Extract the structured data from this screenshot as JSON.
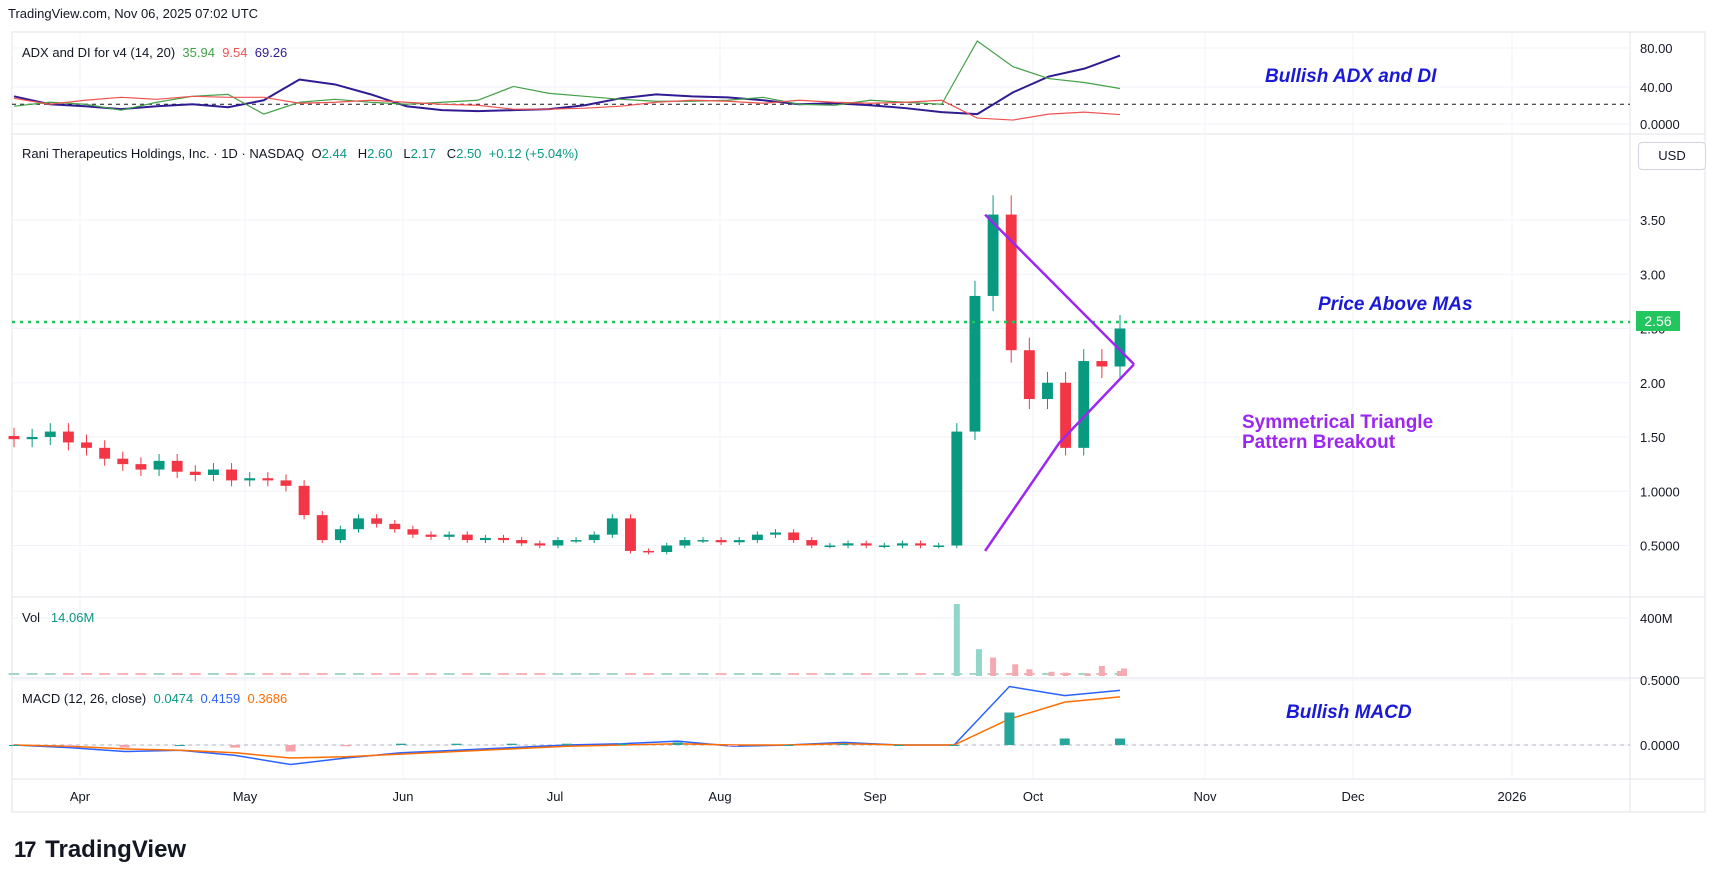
{
  "header": {
    "source_line": "TradingView.com, Nov 06, 2025 07:02 UTC"
  },
  "brand": {
    "logo_text": "TradingView",
    "logo_mark": "17"
  },
  "colors": {
    "up": "#089981",
    "down": "#f23645",
    "adx": "#311b92",
    "di_plus": "#43a047",
    "di_minus": "#ef5350",
    "macd": "#2962ff",
    "signal": "#ff6d00",
    "price_line": "#22c55e",
    "triangle": "#9c27f0",
    "annotation": "#1a1ad6"
  },
  "chart_data": [
    {
      "type": "line",
      "title": "ADX and DI for v4 (14, 20)",
      "values_text": {
        "di_plus": "35.94",
        "di_minus": "9.54",
        "adx": "69.26"
      },
      "yticks": [
        "80.00",
        "40.00",
        "0.0000"
      ],
      "ylim": [
        0,
        85
      ],
      "threshold": 20,
      "series": [
        {
          "name": "ADX",
          "values": [
            28,
            20,
            18,
            15,
            18,
            20,
            17,
            24,
            45,
            40,
            30,
            18,
            14,
            13,
            14,
            15,
            19,
            26,
            30,
            28,
            27,
            24,
            20,
            21,
            19,
            16,
            12,
            10,
            32,
            48,
            56,
            69.26
          ]
        },
        {
          "name": "+DI",
          "values": [
            18,
            22,
            20,
            14,
            22,
            28,
            30,
            10,
            22,
            25,
            22,
            20,
            22,
            24,
            38,
            31,
            28,
            25,
            23,
            23,
            24,
            27,
            20,
            19,
            24,
            22,
            20,
            84,
            58,
            46,
            42,
            35.94
          ]
        },
        {
          "name": "-DI",
          "values": [
            26,
            20,
            24,
            27,
            25,
            28,
            27,
            27,
            21,
            22,
            24,
            22,
            20,
            19,
            15,
            15,
            16,
            18,
            22,
            24,
            23,
            21,
            24,
            22,
            21,
            22,
            24,
            6,
            4,
            10,
            12,
            9.54
          ]
        }
      ],
      "annotation": "Bullish ADX and DI"
    },
    {
      "type": "candlestick",
      "title": "Rani Therapeutics Holdings, Inc. · 1D · NASDAQ",
      "ohlc_text": {
        "o_label": "O",
        "o": "2.44",
        "h_label": "H",
        "h": "2.60",
        "l_label": "L",
        "l": "2.17",
        "c_label": "C",
        "c": "2.50",
        "change": "+0.12 (+5.04%)"
      },
      "currency": "USD",
      "last_price": "2.56",
      "ylim": [
        0.1,
        4.0
      ],
      "yticks": [
        "3.50",
        "3.00",
        "2.50",
        "2.00",
        "1.50",
        "1.0000",
        "0.5000"
      ],
      "xlabels": [
        "Apr",
        "May",
        "Jun",
        "Jul",
        "Aug",
        "Sep",
        "Oct",
        "Nov",
        "Dec",
        "2026"
      ],
      "series": [
        {
          "name": "price",
          "close": [
            1.48,
            1.5,
            1.55,
            1.45,
            1.4,
            1.3,
            1.25,
            1.2,
            1.28,
            1.18,
            1.15,
            1.2,
            1.1,
            1.12,
            1.1,
            1.05,
            0.78,
            0.55,
            0.65,
            0.75,
            0.7,
            0.65,
            0.6,
            0.58,
            0.6,
            0.55,
            0.57,
            0.55,
            0.52,
            0.5,
            0.55,
            0.55,
            0.6,
            0.75,
            0.45,
            0.44,
            0.5,
            0.55,
            0.55,
            0.53,
            0.55,
            0.6,
            0.62,
            0.55,
            0.5,
            0.5,
            0.52,
            0.5,
            0.5,
            0.52,
            0.5,
            0.5,
            1.55,
            2.8,
            3.55,
            2.3,
            1.85,
            2.0,
            1.4,
            2.2,
            2.15,
            2.5
          ]
        }
      ],
      "annotations": [
        "Price Above MAs",
        "Symmetrical Triangle",
        "Pattern Breakout"
      ]
    },
    {
      "type": "bar",
      "title": "Vol",
      "value_text": "14.06M",
      "yticks": [
        "400M"
      ],
      "series": [
        {
          "name": "volume_spike_days",
          "values": [
            430,
            160,
            110,
            70,
            40,
            25,
            20,
            15,
            60,
            45,
            30
          ]
        }
      ]
    },
    {
      "type": "line",
      "title": "MACD (12, 26, close)",
      "values_text": {
        "hist": "0.0474",
        "macd": "0.4159",
        "signal": "0.3686"
      },
      "yticks": [
        "0.5000",
        "0.0000"
      ],
      "series": [
        {
          "name": "MACD",
          "values": [
            0,
            -0.02,
            -0.05,
            -0.04,
            -0.08,
            -0.15,
            -0.1,
            -0.06,
            -0.04,
            -0.02,
            0,
            0.01,
            0.03,
            -0.01,
            0.0,
            0.02,
            0.0,
            0.0,
            0.45,
            0.38,
            0.42
          ]
        },
        {
          "name": "Signal",
          "values": [
            0,
            -0.01,
            -0.03,
            -0.04,
            -0.06,
            -0.1,
            -0.09,
            -0.07,
            -0.05,
            -0.03,
            -0.01,
            0,
            0.01,
            0.0,
            0.0,
            0.01,
            0.0,
            0.0,
            0.2,
            0.33,
            0.37
          ]
        }
      ],
      "annotation": "Bullish MACD"
    }
  ]
}
